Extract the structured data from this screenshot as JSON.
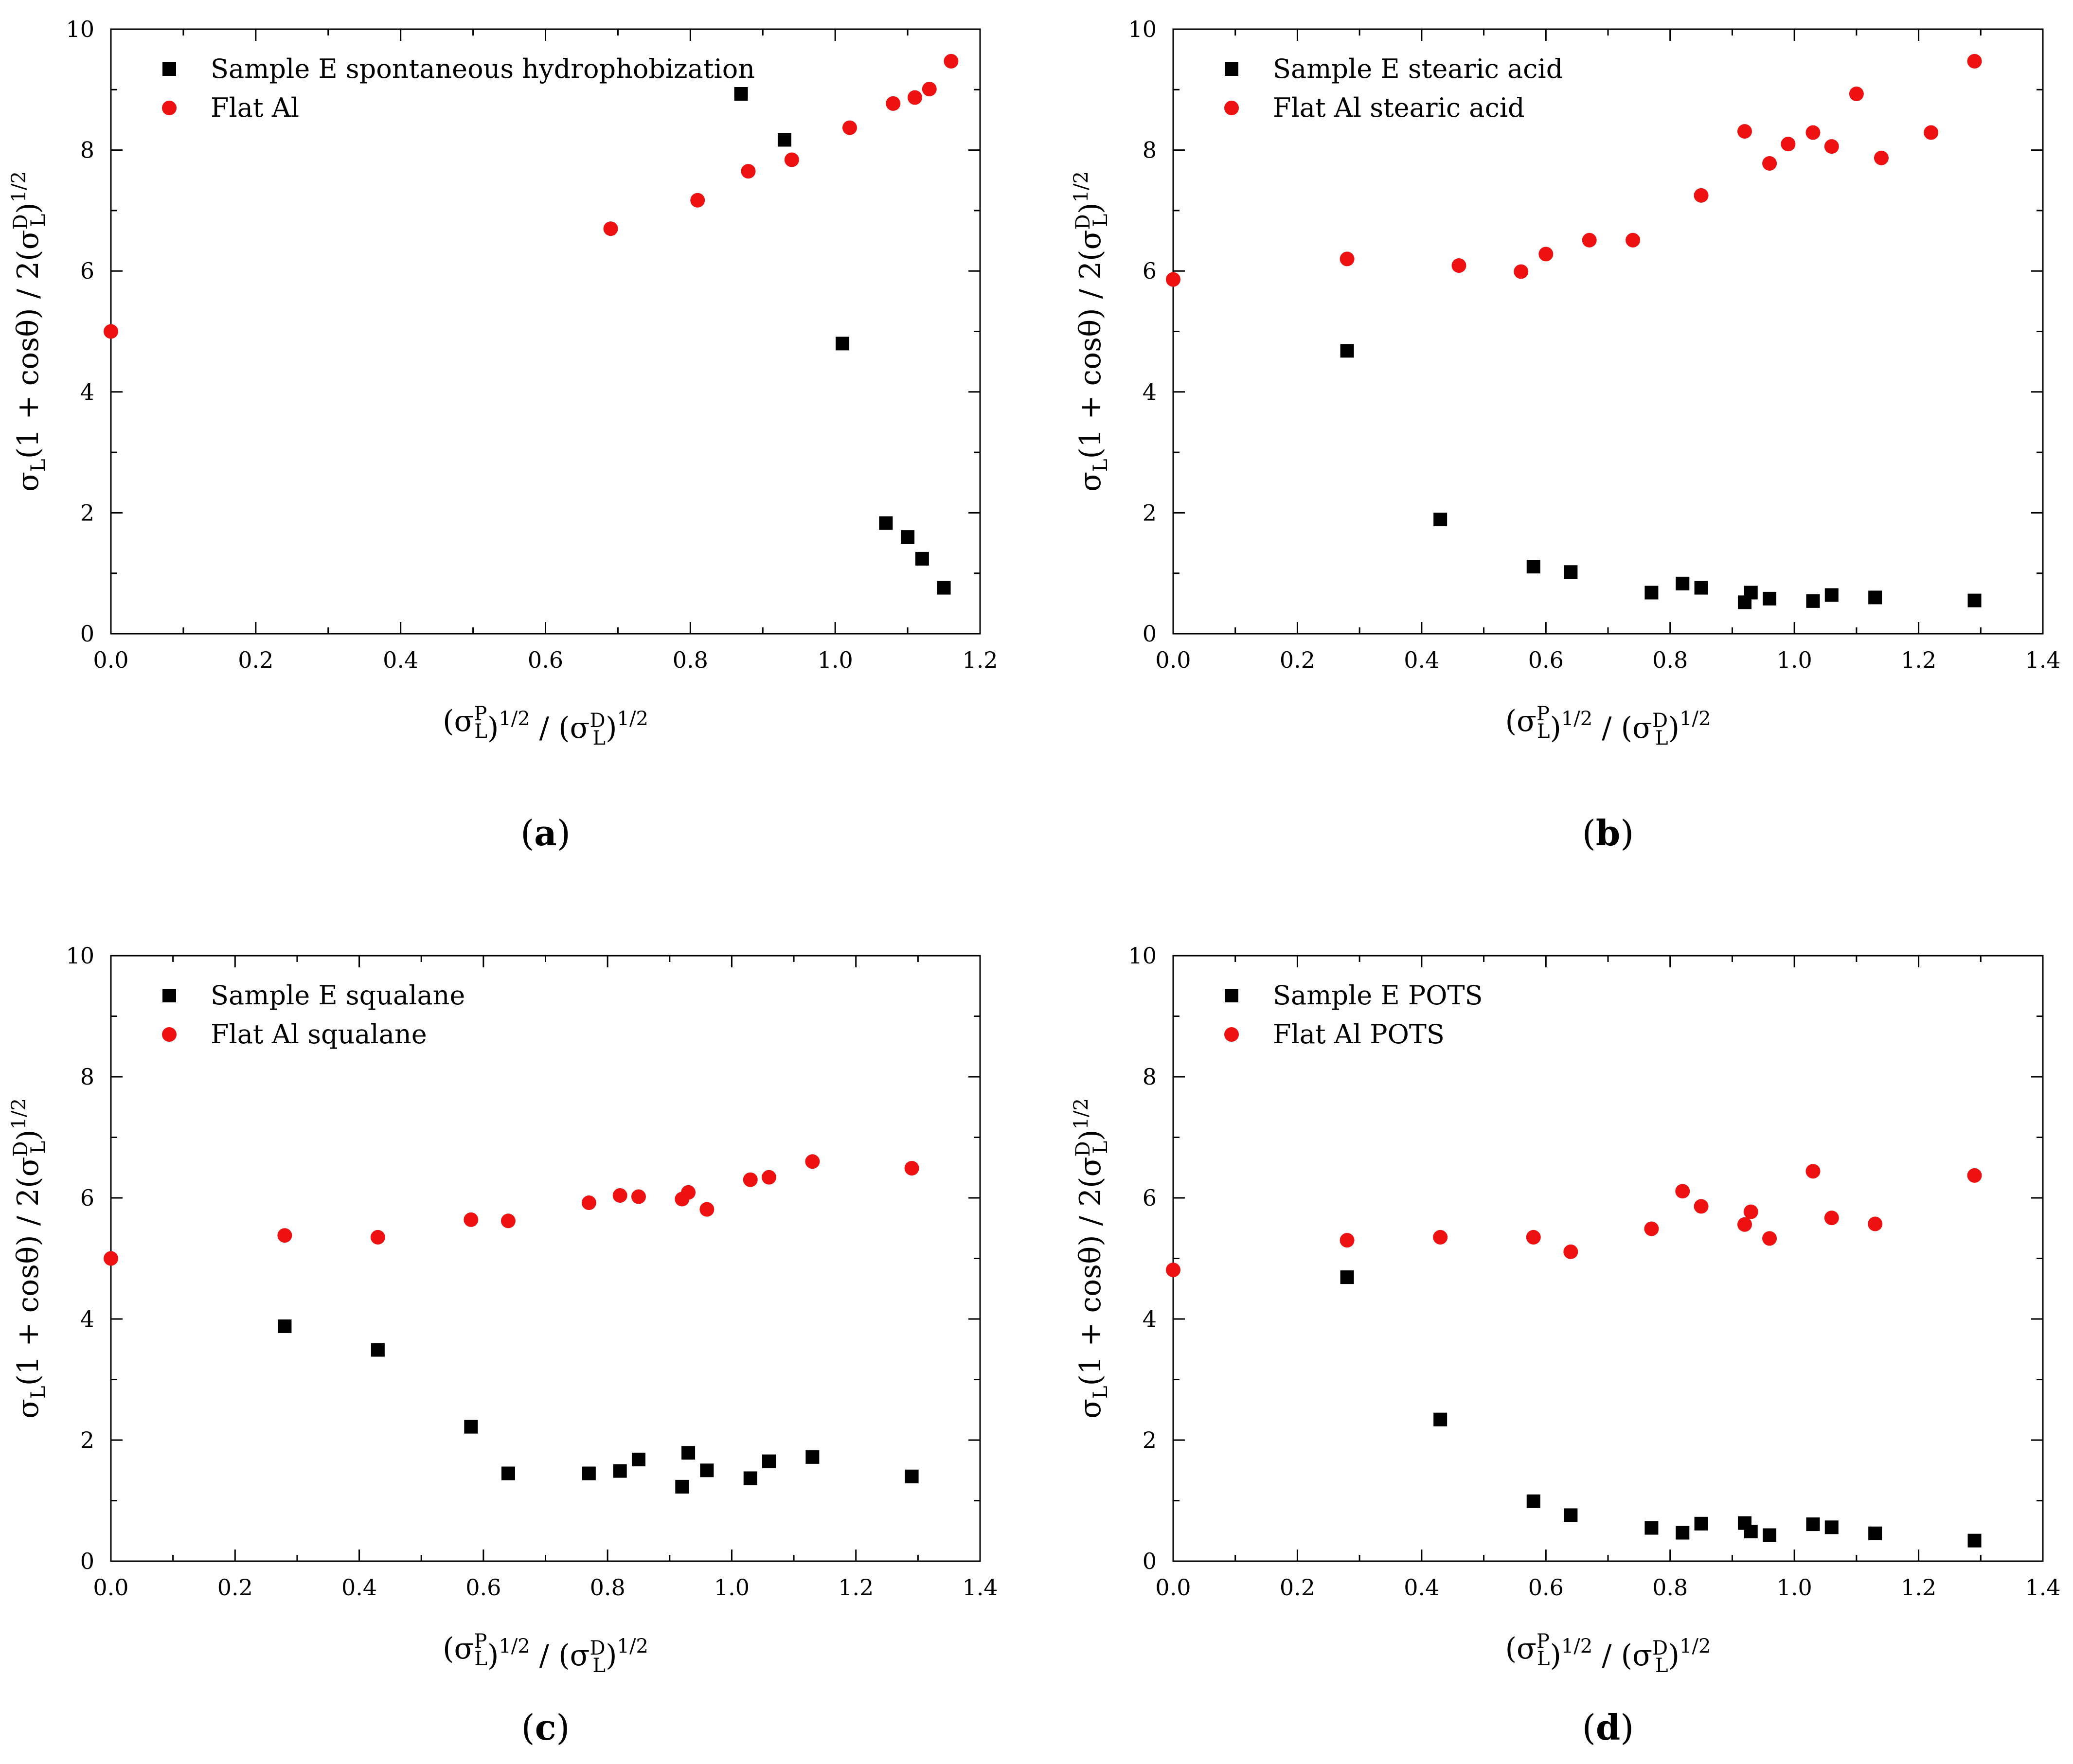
{
  "colors": {
    "series_black": "#000000",
    "series_red": "#ee1111",
    "axis": "#000000"
  },
  "chart_data": [
    {
      "panel": "(a)",
      "panel_letter": "a",
      "type": "scatter",
      "xlabel": "(σLP)1/2 / (σLD)1/2",
      "ylabel": "σL(1 + cosθ) / 2(σLD)1/2",
      "xlim": [
        0,
        1.2
      ],
      "ylim": [
        0,
        10
      ],
      "x_ticks": [
        "0.0",
        "0.2",
        "0.4",
        "0.6",
        "0.8",
        "1.0",
        "1.2"
      ],
      "y_ticks": [
        "0",
        "2",
        "4",
        "6",
        "8",
        "10"
      ],
      "series": [
        {
          "name": "Sample E spontaneous hydrophobization",
          "marker": "square",
          "color": "#000000",
          "x": [
            0.87,
            0.93,
            1.01,
            1.07,
            1.1,
            1.12,
            1.15
          ],
          "y": [
            8.93,
            8.17,
            4.8,
            1.83,
            1.6,
            1.24,
            0.76
          ]
        },
        {
          "name": "Flat Al",
          "marker": "circle",
          "color": "#ee1111",
          "x": [
            0.0,
            0.69,
            0.81,
            0.88,
            0.94,
            1.02,
            1.08,
            1.11,
            1.13,
            1.16
          ],
          "y": [
            5.0,
            6.7,
            7.17,
            7.65,
            7.84,
            8.37,
            8.77,
            8.87,
            9.01,
            9.47
          ]
        }
      ]
    },
    {
      "panel": "(b)",
      "panel_letter": "b",
      "type": "scatter",
      "xlabel": "(σLP)1/2 / (σLD)1/2",
      "ylabel": "σL(1 + cosθ) / 2(σLD)1/2",
      "xlim": [
        0,
        1.4
      ],
      "ylim": [
        0,
        10
      ],
      "x_ticks": [
        "0.0",
        "0.2",
        "0.4",
        "0.6",
        "0.8",
        "1.0",
        "1.2",
        "1.4"
      ],
      "y_ticks": [
        "0",
        "2",
        "4",
        "6",
        "8",
        "10"
      ],
      "series": [
        {
          "name": "Sample E stearic acid",
          "marker": "square",
          "color": "#000000",
          "x": [
            0.28,
            0.43,
            0.58,
            0.64,
            0.77,
            0.82,
            0.85,
            0.92,
            0.93,
            0.96,
            1.03,
            1.06,
            1.13,
            1.29
          ],
          "y": [
            4.68,
            1.89,
            1.11,
            1.02,
            0.68,
            0.83,
            0.76,
            0.52,
            0.68,
            0.58,
            0.54,
            0.64,
            0.6,
            0.55
          ]
        },
        {
          "name": "Flat Al stearic acid",
          "marker": "circle",
          "color": "#ee1111",
          "x": [
            0.0,
            0.28,
            0.46,
            0.56,
            0.6,
            0.67,
            0.74,
            0.85,
            0.92,
            0.96,
            0.99,
            1.03,
            1.06,
            1.1,
            1.14,
            1.22,
            1.29
          ],
          "y": [
            5.86,
            6.2,
            6.09,
            5.99,
            6.28,
            6.51,
            6.51,
            7.25,
            8.31,
            7.78,
            8.1,
            8.29,
            8.06,
            8.93,
            7.87,
            8.29,
            9.47
          ]
        }
      ]
    },
    {
      "panel": "(c)",
      "panel_letter": "c",
      "type": "scatter",
      "xlabel": "(σLP)1/2 / (σLD)1/2",
      "ylabel": "σL(1 + cosθ) / 2(σLD)1/2",
      "xlim": [
        0,
        1.4
      ],
      "ylim": [
        0,
        10
      ],
      "x_ticks": [
        "0.0",
        "0.2",
        "0.4",
        "0.6",
        "0.8",
        "1.0",
        "1.2",
        "1.4"
      ],
      "y_ticks": [
        "0",
        "2",
        "4",
        "6",
        "8",
        "10"
      ],
      "series": [
        {
          "name": "Sample E squalane",
          "marker": "square",
          "color": "#000000",
          "x": [
            0.28,
            0.43,
            0.58,
            0.64,
            0.77,
            0.82,
            0.85,
            0.92,
            0.93,
            0.96,
            1.03,
            1.06,
            1.13,
            1.29
          ],
          "y": [
            3.88,
            3.49,
            2.22,
            1.45,
            1.45,
            1.49,
            1.68,
            1.23,
            1.79,
            1.5,
            1.37,
            1.65,
            1.72,
            1.4
          ]
        },
        {
          "name": "Flat Al squalane",
          "marker": "circle",
          "color": "#ee1111",
          "x": [
            0.0,
            0.28,
            0.43,
            0.58,
            0.64,
            0.77,
            0.82,
            0.85,
            0.92,
            0.93,
            0.96,
            1.03,
            1.06,
            1.13,
            1.29
          ],
          "y": [
            5.0,
            5.38,
            5.35,
            5.64,
            5.62,
            5.92,
            6.04,
            6.02,
            5.98,
            6.09,
            5.81,
            6.3,
            6.34,
            6.6,
            6.49
          ]
        }
      ]
    },
    {
      "panel": "(d)",
      "panel_letter": "d",
      "type": "scatter",
      "xlabel": "(σLP)1/2 / (σLD)1/2",
      "ylabel": "σL(1 + cosθ) / 2(σLD)1/2",
      "xlim": [
        0,
        1.4
      ],
      "ylim": [
        0,
        10
      ],
      "x_ticks": [
        "0.0",
        "0.2",
        "0.4",
        "0.6",
        "0.8",
        "1.0",
        "1.2",
        "1.4"
      ],
      "y_ticks": [
        "0",
        "2",
        "4",
        "6",
        "8",
        "10"
      ],
      "series": [
        {
          "name": "Sample E POTS",
          "marker": "square",
          "color": "#000000",
          "x": [
            0.28,
            0.43,
            0.58,
            0.64,
            0.77,
            0.82,
            0.85,
            0.92,
            0.93,
            0.96,
            1.03,
            1.06,
            1.13,
            1.29
          ],
          "y": [
            4.69,
            2.34,
            0.99,
            0.76,
            0.55,
            0.47,
            0.62,
            0.63,
            0.49,
            0.43,
            0.61,
            0.56,
            0.46,
            0.34
          ]
        },
        {
          "name": "Flat Al POTS",
          "marker": "circle",
          "color": "#ee1111",
          "x": [
            0.0,
            0.28,
            0.43,
            0.58,
            0.64,
            0.77,
            0.82,
            0.85,
            0.92,
            0.93,
            0.96,
            1.03,
            1.06,
            1.13,
            1.29
          ],
          "y": [
            4.81,
            5.3,
            5.35,
            5.35,
            5.11,
            5.49,
            6.11,
            5.86,
            5.56,
            5.77,
            5.33,
            6.44,
            5.67,
            5.57,
            6.37
          ]
        }
      ]
    }
  ]
}
